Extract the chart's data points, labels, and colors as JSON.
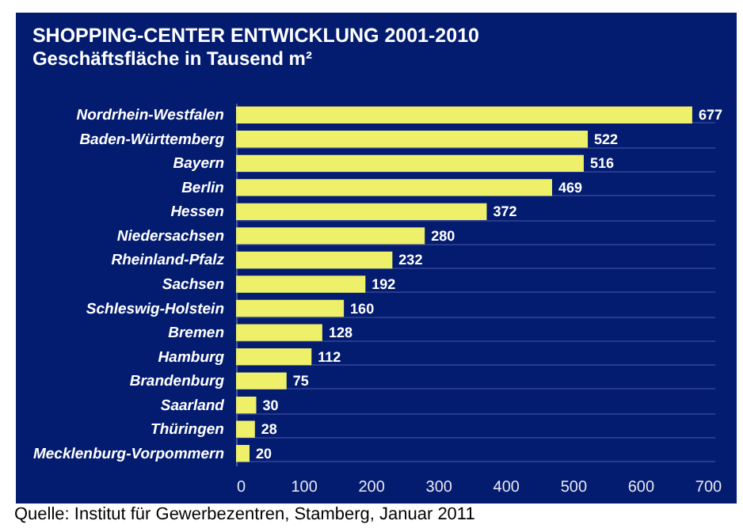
{
  "chart_data": {
    "type": "bar",
    "orientation": "horizontal",
    "title": "SHOPPING-CENTER ENTWICKLUNG 2001-2010",
    "subtitle": "Geschäftsfläche in Tausend m²",
    "categories": [
      "Nordrhein-Westfalen",
      "Baden-Württemberg",
      "Bayern",
      "Berlin",
      "Hessen",
      "Niedersachsen",
      "Rheinland-Pfalz",
      "Sachsen",
      "Schleswig-Holstein",
      "Bremen",
      "Hamburg",
      "Brandenburg",
      "Saarland",
      "Thüringen",
      "Mecklenburg-Vorpommern"
    ],
    "values": [
      677,
      522,
      516,
      469,
      372,
      280,
      232,
      192,
      160,
      128,
      112,
      75,
      30,
      28,
      20
    ],
    "color": "#eef06a",
    "data_labels": true,
    "xlim": [
      0,
      710
    ],
    "xticks": [
      0,
      100,
      200,
      300,
      400,
      500,
      600,
      700
    ],
    "grid": "y",
    "annotations": [
      "Quelle: Institut für Gewerbezentren, Stamberg, Januar 2011"
    ]
  }
}
